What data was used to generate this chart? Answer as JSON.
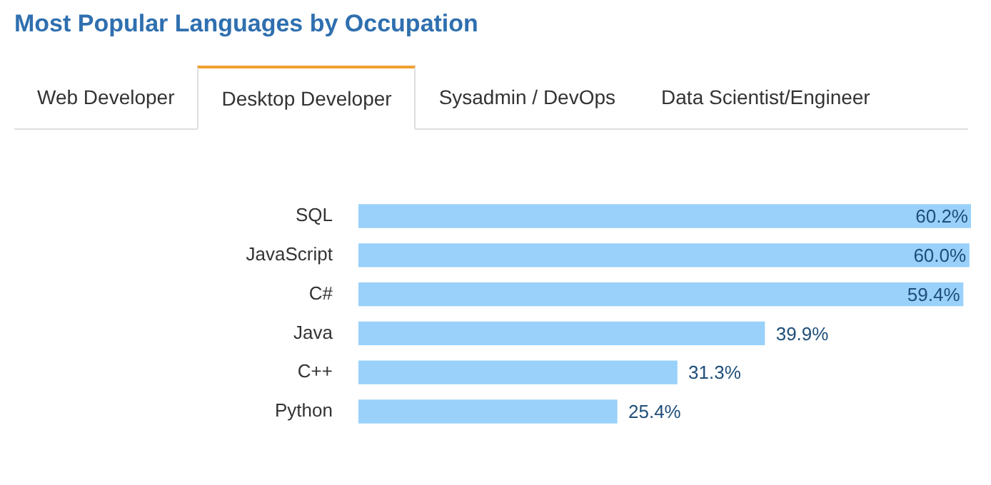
{
  "chart_data": {
    "type": "bar",
    "orientation": "horizontal",
    "title": "Most Popular Languages by Occupation",
    "annotations": [
      "Web Developer",
      "Desktop Developer",
      "Sysadmin / DevOps",
      "Data Scientist/Engineer"
    ],
    "categories": [
      "SQL",
      "JavaScript",
      "C#",
      "Java",
      "C++",
      "Python"
    ],
    "values": [
      60.2,
      60.0,
      59.4,
      39.9,
      31.3,
      25.4
    ],
    "value_labels": [
      "60.2%",
      "60.0%",
      "59.4%",
      "39.9%",
      "31.3%",
      "25.4%"
    ],
    "color": "#99d1fa",
    "tick_labels": "y",
    "grid": false,
    "legend": false
  }
}
